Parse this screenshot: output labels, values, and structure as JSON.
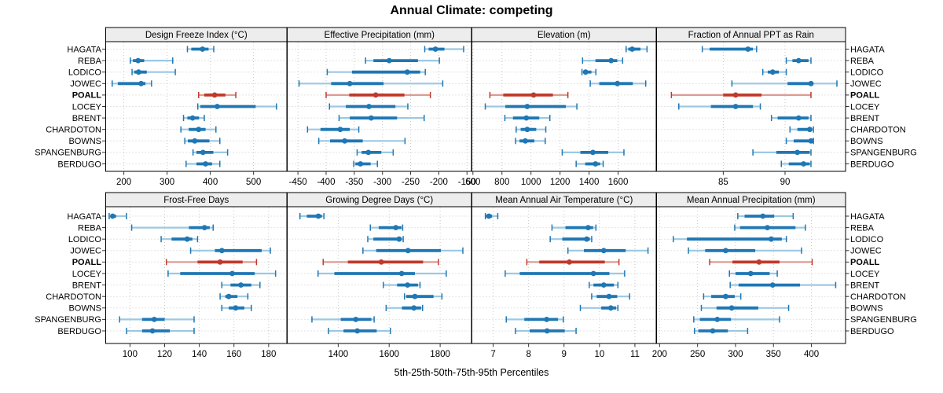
{
  "title": "Annual Climate: competing",
  "footer": "5th-25th-50th-75th-95th Percentiles",
  "colors": {
    "series": "#1F77B4",
    "series_light": "#9CC8E3",
    "highlight": "#C0392B",
    "highlight_light": "#DE9B93",
    "panel_header_bg": "#EDEDED",
    "panel_border": "#000000",
    "grid": "#C8C8C8",
    "tick": "#333333",
    "text": "#000000"
  },
  "chart_data": {
    "type": "scatter",
    "subtype": "trellis-percentile-dotplot",
    "title": "Annual Climate: competing",
    "caption": "5th-25th-50th-75th-95th Percentiles",
    "percentiles": [
      5,
      25,
      50,
      75,
      95
    ],
    "legend_position": "none",
    "grid": "dotted",
    "sites": [
      "HAGATA",
      "REBA",
      "LODICO",
      "JOWEC",
      "POALL",
      "LOCEY",
      "BRENT",
      "CHARDOTON",
      "BOWNS",
      "SPANGENBURG",
      "BERDUGO"
    ],
    "highlight_site": "POALL",
    "panels": [
      {
        "title": "Design Freeze Index (°C)",
        "row": 0,
        "col": 0,
        "xlim": [
          158,
          577
        ],
        "ticks": [
          200,
          300,
          400,
          500
        ],
        "values": {
          "HAGATA": [
            347,
            356,
            382,
            396,
            408
          ],
          "REBA": [
            215,
            221,
            233,
            247,
            313
          ],
          "LODICO": [
            219,
            224,
            234,
            253,
            319
          ],
          "JOWEC": [
            173,
            186,
            240,
            250,
            264
          ],
          "POALL": [
            373,
            386,
            410,
            435,
            459
          ],
          "LOCEY": [
            371,
            377,
            416,
            505,
            553
          ],
          "BRENT": [
            338,
            347,
            359,
            374,
            386
          ],
          "CHARDOTON": [
            332,
            350,
            373,
            389,
            413
          ],
          "BOWNS": [
            341,
            348,
            364,
            398,
            422
          ],
          "SPANGENBURG": [
            360,
            368,
            383,
            407,
            440
          ],
          "BERDUGO": [
            344,
            368,
            389,
            404,
            422
          ]
        }
      },
      {
        "title": "Effective Precipitation (mm)",
        "row": 0,
        "col": 1,
        "xlim": [
          -469,
          -142
        ],
        "ticks": [
          -450,
          -400,
          -350,
          -300,
          -250,
          -200,
          -150
        ],
        "values": {
          "HAGATA": [
            -225,
            -218,
            -206,
            -190,
            -156
          ],
          "REBA": [
            -330,
            -316,
            -288,
            -237,
            -199
          ],
          "LODICO": [
            -398,
            -354,
            -256,
            -233,
            -224
          ],
          "JOWEC": [
            -448,
            -391,
            -358,
            -298,
            -193
          ],
          "POALL": [
            -400,
            -359,
            -312,
            -261,
            -215
          ],
          "LOCEY": [
            -394,
            -365,
            -324,
            -277,
            -255
          ],
          "BRENT": [
            -377,
            -358,
            -320,
            -274,
            -226
          ],
          "CHARDOTON": [
            -433,
            -410,
            -375,
            -358,
            -342
          ],
          "BOWNS": [
            -413,
            -393,
            -367,
            -335,
            -260
          ],
          "SPANGENBURG": [
            -345,
            -337,
            -325,
            -302,
            -281
          ],
          "BERDUGO": [
            -351,
            -348,
            -339,
            -321,
            -309
          ]
        }
      },
      {
        "title": "Elevation (m)",
        "row": 0,
        "col": 2,
        "xlim": [
          593,
          1862
        ],
        "ticks": [
          600,
          800,
          1000,
          1200,
          1400,
          1600
        ],
        "values": {
          "HAGATA": [
            1655,
            1670,
            1697,
            1754,
            1799
          ],
          "REBA": [
            1355,
            1444,
            1552,
            1594,
            1631
          ],
          "LODICO": [
            1351,
            1359,
            1376,
            1416,
            1447
          ],
          "JOWEC": [
            1408,
            1470,
            1595,
            1701,
            1790
          ],
          "POALL": [
            717,
            809,
            1018,
            1151,
            1254
          ],
          "LOCEY": [
            685,
            823,
            974,
            1240,
            1316
          ],
          "BRENT": [
            820,
            876,
            968,
            1057,
            1130
          ],
          "CHARDOTON": [
            898,
            929,
            974,
            1036,
            1102
          ],
          "BOWNS": [
            894,
            921,
            961,
            1023,
            1098
          ],
          "SPANGENBURG": [
            1215,
            1340,
            1426,
            1532,
            1640
          ],
          "BERDUGO": [
            1311,
            1373,
            1444,
            1476,
            1497
          ]
        }
      },
      {
        "title": "Fraction of Annual PPT as Rain",
        "row": 0,
        "col": 3,
        "xlim": [
          79.6,
          94.9
        ],
        "ticks": [
          85,
          90
        ],
        "values": {
          "HAGATA": [
            83.3,
            83.9,
            87.0,
            87.4,
            87.7
          ],
          "REBA": [
            90.1,
            90.6,
            91.1,
            91.9,
            92.1
          ],
          "LODICO": [
            88.2,
            88.6,
            89.0,
            89.5,
            90.1
          ],
          "JOWEC": [
            85.7,
            90.2,
            92.1,
            92.3,
            94.2
          ],
          "POALL": [
            80.8,
            85.0,
            86.0,
            88.1,
            92.1
          ],
          "LOCEY": [
            81.4,
            84.0,
            86.0,
            87.4,
            88.0
          ],
          "BRENT": [
            88.9,
            89.4,
            91.1,
            91.9,
            92.1
          ],
          "CHARDOTON": [
            90.4,
            91.0,
            92.0,
            92.2,
            92.3
          ],
          "BOWNS": [
            90.1,
            90.7,
            92.1,
            92.2,
            92.3
          ],
          "SPANGENBURG": [
            87.4,
            89.3,
            91.0,
            92.0,
            92.1
          ],
          "BERDUGO": [
            89.7,
            90.3,
            91.5,
            92.0,
            92.1
          ]
        }
      },
      {
        "title": "Frost-Free Days",
        "row": 1,
        "col": 0,
        "xlim": [
          86,
          190.5
        ],
        "ticks": [
          100,
          120,
          140,
          160,
          180
        ],
        "values": {
          "HAGATA": [
            88,
            89,
            90,
            92,
            98
          ],
          "REBA": [
            101,
            134,
            143,
            146,
            148
          ],
          "LODICO": [
            118,
            124,
            133,
            136,
            139
          ],
          "JOWEC": [
            135,
            149,
            153,
            176,
            181
          ],
          "POALL": [
            121,
            139,
            152,
            165,
            173
          ],
          "LOCEY": [
            122,
            129,
            159,
            172,
            184
          ],
          "BRENT": [
            153,
            158,
            164,
            170,
            175
          ],
          "CHARDOTON": [
            152,
            155,
            157,
            162,
            168
          ],
          "BOWNS": [
            153,
            157,
            161,
            166,
            170
          ],
          "SPANGENBURG": [
            94,
            107,
            114,
            120,
            137
          ],
          "BERDUGO": [
            98,
            107,
            113,
            123,
            137
          ]
        }
      },
      {
        "title": "Growing Degree Days (°C)",
        "row": 1,
        "col": 1,
        "xlim": [
          1200,
          1923
        ],
        "ticks": [
          1400,
          1600,
          1800
        ],
        "values": {
          "HAGATA": [
            1250,
            1277,
            1322,
            1336,
            1344
          ],
          "REBA": [
            1526,
            1559,
            1626,
            1648,
            1653
          ],
          "LODICO": [
            1516,
            1538,
            1639,
            1649,
            1655
          ],
          "JOWEC": [
            1497,
            1549,
            1674,
            1803,
            1889
          ],
          "POALL": [
            1341,
            1438,
            1569,
            1733,
            1793
          ],
          "LOCEY": [
            1321,
            1385,
            1649,
            1701,
            1824
          ],
          "BRENT": [
            1577,
            1631,
            1672,
            1713,
            1721
          ],
          "CHARDOTON": [
            1660,
            1667,
            1701,
            1774,
            1807
          ],
          "BOWNS": [
            1588,
            1650,
            1697,
            1725,
            1731
          ],
          "SPANGENBURG": [
            1297,
            1410,
            1469,
            1530,
            1541
          ],
          "BERDUGO": [
            1362,
            1421,
            1475,
            1551,
            1605
          ]
        }
      },
      {
        "title": "Mean Annual Air Temperature (°C)",
        "row": 1,
        "col": 2,
        "xlim": [
          6.4,
          11.6
        ],
        "ticks": [
          7,
          8,
          9,
          10,
          11
        ],
        "values": {
          "HAGATA": [
            6.78,
            6.8,
            6.88,
            6.97,
            7.13
          ],
          "REBA": [
            8.66,
            9.04,
            9.68,
            9.82,
            9.9
          ],
          "LODICO": [
            8.61,
            8.95,
            9.64,
            9.73,
            9.78
          ],
          "JOWEC": [
            9.11,
            9.56,
            10.12,
            10.74,
            11.37
          ],
          "POALL": [
            7.95,
            8.3,
            9.15,
            10.15,
            10.55
          ],
          "LOCEY": [
            7.34,
            7.75,
            9.83,
            10.28,
            10.71
          ],
          "BRENT": [
            9.71,
            9.83,
            10.12,
            10.41,
            10.52
          ],
          "CHARDOTON": [
            9.78,
            9.92,
            10.27,
            10.5,
            10.85
          ],
          "BOWNS": [
            9.46,
            10.05,
            10.32,
            10.47,
            10.52
          ],
          "SPANGENBURG": [
            7.37,
            7.88,
            8.51,
            8.83,
            8.98
          ],
          "BERDUGO": [
            7.63,
            8.03,
            8.52,
            9.02,
            9.34
          ]
        }
      },
      {
        "title": "Mean Annual Precipitation (mm)",
        "row": 1,
        "col": 3,
        "xlim": [
          196,
          445
        ],
        "ticks": [
          200,
          250,
          300,
          350,
          400
        ],
        "values": {
          "HAGATA": [
            303,
            312,
            336,
            351,
            376
          ],
          "REBA": [
            299,
            306,
            342,
            379,
            392
          ],
          "LODICO": [
            218,
            236,
            347,
            361,
            367
          ],
          "JOWEC": [
            238,
            260,
            287,
            326,
            387
          ],
          "POALL": [
            266,
            296,
            331,
            358,
            401
          ],
          "LOCEY": [
            292,
            300,
            320,
            345,
            355
          ],
          "BRENT": [
            293,
            304,
            349,
            385,
            432
          ],
          "CHARDOTON": [
            258,
            268,
            287,
            299,
            307
          ],
          "BOWNS": [
            255,
            275,
            295,
            330,
            370
          ],
          "SPANGENBURG": [
            245,
            253,
            276,
            294,
            358
          ],
          "BERDUGO": [
            246,
            251,
            270,
            290,
            316
          ]
        }
      }
    ]
  }
}
